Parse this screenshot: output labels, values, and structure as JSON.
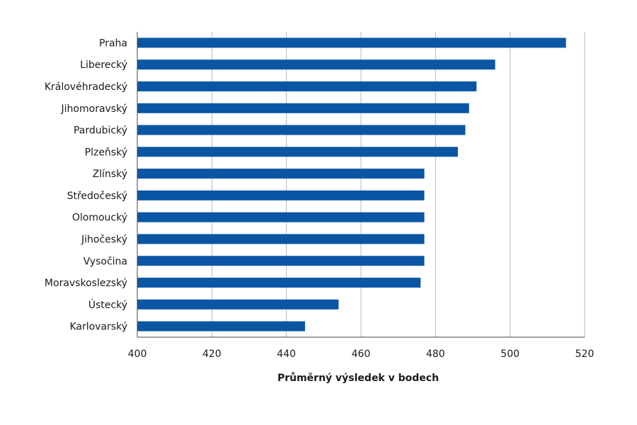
{
  "chart_data": {
    "type": "bar",
    "orientation": "horizontal",
    "title": "",
    "xlabel": "Průměrný výsledek v bodech",
    "ylabel": "",
    "xlim": [
      400,
      520
    ],
    "x_ticks": [
      400,
      420,
      440,
      460,
      480,
      500,
      520
    ],
    "grid": "vertical",
    "bar_color": "#0b56a4",
    "categories": [
      "Praha",
      "Liberecký",
      "Královéhradecký",
      "Jihomoravský",
      "Pardubický",
      "Plzeňský",
      "Zlínský",
      "Středočeský",
      "Olomoucký",
      "Jihočeský",
      "Vysočina",
      "Moravskoslezský",
      "Ústecký",
      "Karlovarský"
    ],
    "values": [
      515,
      496,
      491,
      489,
      488,
      486,
      477,
      477,
      477,
      477,
      477,
      476,
      454,
      445
    ]
  }
}
